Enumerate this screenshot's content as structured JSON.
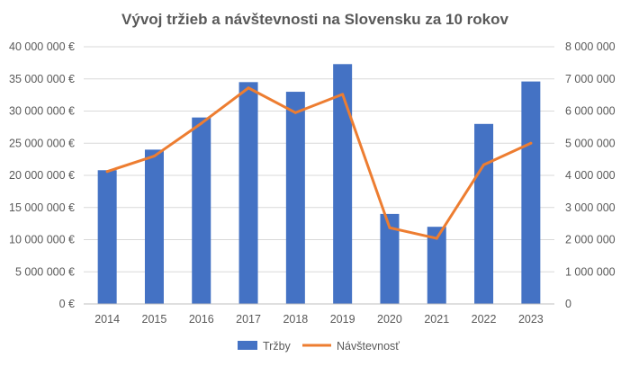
{
  "chart_data": {
    "type": "bar+line",
    "title": "Vývoj tržieb a návštevnosti na Slovensku za 10 rokov",
    "categories": [
      "2014",
      "2015",
      "2016",
      "2017",
      "2018",
      "2019",
      "2020",
      "2021",
      "2022",
      "2023"
    ],
    "series": [
      {
        "name": "Tržby",
        "kind": "bar",
        "axis": "left",
        "color": "#4472c4",
        "values": [
          20800000,
          24000000,
          29000000,
          34500000,
          33000000,
          37300000,
          14000000,
          12000000,
          28000000,
          34600000
        ]
      },
      {
        "name": "Návštevnosť",
        "kind": "line",
        "axis": "right",
        "color": "#ed7d31",
        "values": [
          4120000,
          4600000,
          5620000,
          6720000,
          5950000,
          6520000,
          2370000,
          2040000,
          4330000,
          5000000
        ]
      }
    ],
    "y_left": {
      "min": 0,
      "max": 40000000,
      "step": 5000000,
      "tick_labels": [
        "0 €",
        "5 000 000 €",
        "10 000 000 €",
        "15 000 000 €",
        "20 000 000 €",
        "25 000 000 €",
        "30 000 000 €",
        "35 000 000 €",
        "40 000 000 €"
      ]
    },
    "y_right": {
      "min": 0,
      "max": 8000000,
      "step": 1000000,
      "tick_labels": [
        "0",
        "1 000 000",
        "2 000 000",
        "3 000 000",
        "4 000 000",
        "5 000 000",
        "6 000 000",
        "7 000 000",
        "8 000 000"
      ]
    },
    "grid": true,
    "legend_position": "bottom"
  }
}
